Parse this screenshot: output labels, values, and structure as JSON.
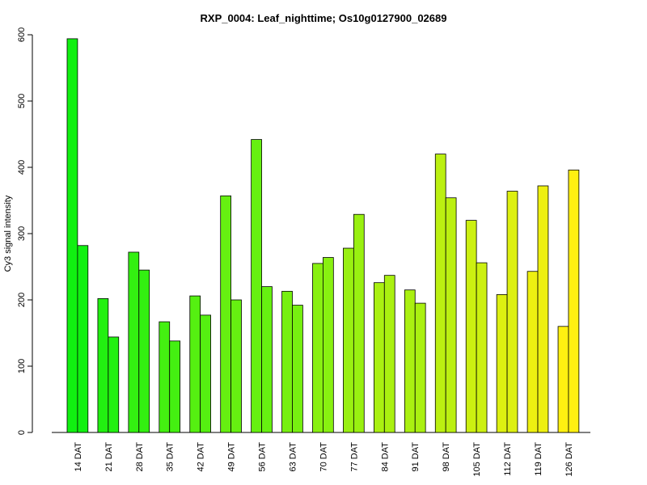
{
  "chart_data": {
    "type": "bar",
    "title": "RXP_0004: Leaf_nighttime; Os10g0127900_02689",
    "xlabel": "",
    "ylabel": "Cy3 signal intensity",
    "ylim": [
      0,
      600
    ],
    "yticks": [
      0,
      100,
      200,
      300,
      400,
      500,
      600
    ],
    "grid": false,
    "legend": "none",
    "categories": [
      "14 DAT",
      "21 DAT",
      "28 DAT",
      "35 DAT",
      "42 DAT",
      "49 DAT",
      "56 DAT",
      "63 DAT",
      "70 DAT",
      "77 DAT",
      "84 DAT",
      "91 DAT",
      "98 DAT",
      "105 DAT",
      "112 DAT",
      "119 DAT",
      "126 DAT"
    ],
    "series": [
      {
        "values": [
          594,
          202,
          272,
          167,
          206,
          357,
          442,
          213,
          255,
          278,
          226,
          215,
          420,
          320,
          208,
          243,
          160
        ]
      },
      {
        "values": [
          282,
          144,
          245,
          138,
          177,
          200,
          220,
          192,
          264,
          329,
          237,
          195,
          354,
          256,
          364,
          372,
          396
        ]
      }
    ],
    "colors": [
      "#11f011",
      "#22f011",
      "#33f011",
      "#44f011",
      "#55f011",
      "#66f011",
      "#66f011",
      "#77f011",
      "#88f011",
      "#99f011",
      "#aaf011",
      "#aaf011",
      "#bbf011",
      "#ccf011",
      "#ddf011",
      "#eef011",
      "#fff011"
    ]
  }
}
